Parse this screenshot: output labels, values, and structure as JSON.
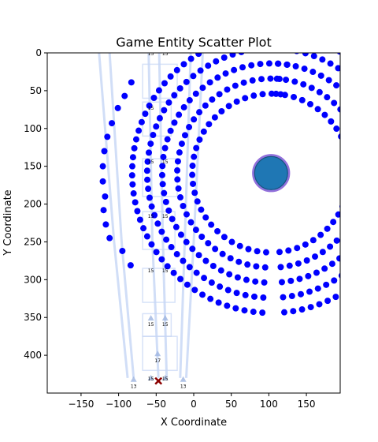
{
  "chart_data": {
    "type": "scatter",
    "title": "Game Entity Scatter Plot",
    "xlabel": "X Coordinate",
    "ylabel": "Y Coordinate",
    "xlim": [
      -195,
      195
    ],
    "ylim": [
      450,
      0
    ],
    "y_inverted": true,
    "grid": false,
    "xticks": [
      -150,
      -100,
      -50,
      0,
      50,
      100,
      150
    ],
    "yticks": [
      0,
      50,
      100,
      150,
      200,
      250,
      300,
      350,
      400
    ],
    "colors": {
      "dots": "#0000ff",
      "big_circle_fill": "#1f77b4",
      "big_circle_edge": "#9370db",
      "paths": "#c6d6f5",
      "marker_x": "#8b0000",
      "small_units": "#9db4e0"
    },
    "big_circle": {
      "center": [
        103,
        159
      ],
      "radius": 24
    },
    "rings": [
      {
        "center": [
          103,
          159
        ],
        "radius": 105
      },
      {
        "center": [
          103,
          159
        ],
        "radius": 125
      },
      {
        "center": [
          103,
          159
        ],
        "radius": 145
      },
      {
        "center": [
          103,
          159
        ],
        "radius": 165
      },
      {
        "center": [
          103,
          159
        ],
        "radius": 185
      }
    ],
    "left_arc": [
      [
        -118,
        190
      ],
      [
        -121,
        170
      ],
      [
        -121,
        150
      ],
      [
        -119,
        130
      ],
      [
        -115,
        111
      ],
      [
        -109,
        93
      ],
      [
        -101,
        73
      ],
      [
        -92,
        57
      ],
      [
        -83,
        39
      ]
    ],
    "left_arc_2": [
      [
        -112,
        245
      ],
      [
        -117,
        227
      ],
      [
        -120,
        208
      ],
      [
        -95,
        262
      ],
      [
        -84,
        281
      ]
    ],
    "paths": [
      [
        [
          -126,
          0
        ],
        [
          -106,
          250
        ],
        [
          -88,
          430
        ]
      ],
      [
        [
          -112,
          0
        ],
        [
          -96,
          250
        ],
        [
          -80,
          430
        ]
      ],
      [
        [
          -60,
          0
        ],
        [
          -55,
          250
        ],
        [
          -47,
          430
        ]
      ],
      [
        [
          -46,
          0
        ],
        [
          -41,
          250
        ],
        [
          -36,
          430
        ]
      ],
      [
        [
          -4,
          0
        ],
        [
          -12,
          250
        ],
        [
          -18,
          430
        ]
      ],
      [
        [
          12,
          0
        ],
        [
          0,
          250
        ],
        [
          -10,
          430
        ]
      ]
    ],
    "path_boxes": [
      [
        [
          -68,
          15
        ],
        [
          -22,
          60
        ]
      ],
      [
        [
          -68,
          65
        ],
        [
          -30,
          110
        ]
      ],
      [
        [
          -68,
          140
        ],
        [
          -22,
          190
        ]
      ],
      [
        [
          -68,
          210
        ],
        [
          -25,
          260
        ]
      ],
      [
        [
          -68,
          285
        ],
        [
          -25,
          330
        ]
      ],
      [
        [
          -68,
          345
        ],
        [
          -30,
          375
        ]
      ],
      [
        [
          -68,
          375
        ],
        [
          -22,
          420
        ]
      ]
    ],
    "number_labels": [
      {
        "x": -57,
        "y": 0,
        "text": "15"
      },
      {
        "x": -38,
        "y": 0,
        "text": "15"
      },
      {
        "x": -57,
        "y": 72,
        "text": "15"
      },
      {
        "x": -57,
        "y": 143,
        "text": "15"
      },
      {
        "x": -38,
        "y": 143,
        "text": "15"
      },
      {
        "x": -57,
        "y": 215,
        "text": "15"
      },
      {
        "x": -38,
        "y": 215,
        "text": "15"
      },
      {
        "x": -57,
        "y": 287,
        "text": "15"
      },
      {
        "x": -38,
        "y": 287,
        "text": "15"
      },
      {
        "x": -57,
        "y": 358,
        "text": "15"
      },
      {
        "x": -38,
        "y": 358,
        "text": "15"
      },
      {
        "x": -48,
        "y": 406,
        "text": "17"
      },
      {
        "x": -80,
        "y": 440,
        "text": "13"
      },
      {
        "x": -57,
        "y": 430,
        "text": "15"
      },
      {
        "x": -38,
        "y": 430,
        "text": "15"
      },
      {
        "x": -14,
        "y": 440,
        "text": "13"
      }
    ],
    "small_units": [
      [
        -57,
        351
      ],
      [
        -38,
        351
      ],
      [
        -48,
        398
      ],
      [
        -80,
        432
      ],
      [
        -57,
        430
      ],
      [
        -38,
        430
      ],
      [
        -14,
        432
      ]
    ],
    "marker_x": [
      -47,
      434
    ]
  }
}
